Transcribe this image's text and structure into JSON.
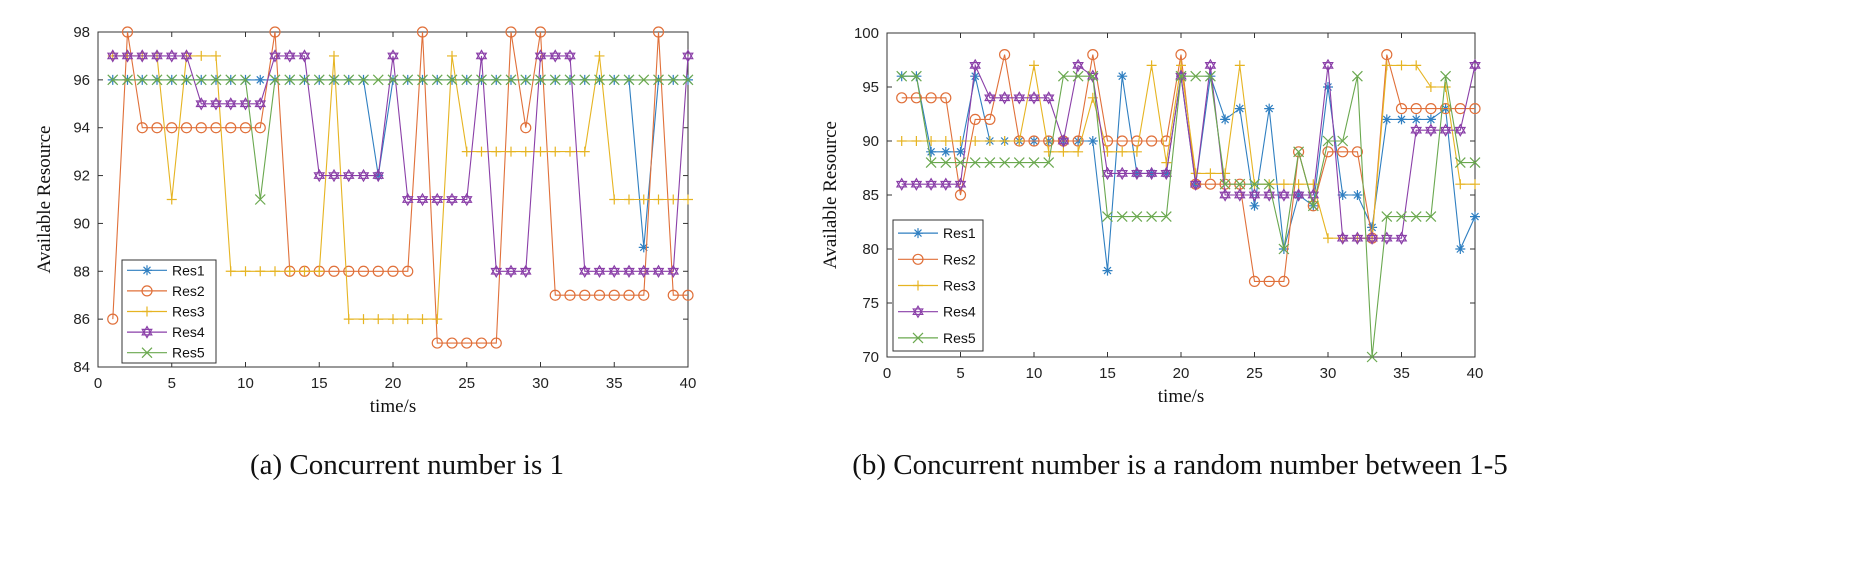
{
  "chart_data": [
    {
      "type": "line",
      "caption": "(a)  Concurrent number is 1",
      "xlabel": "time/s",
      "ylabel": "Available  Resource",
      "xlim": [
        0,
        40
      ],
      "ylim": [
        84,
        98
      ],
      "xticks": [
        0,
        5,
        10,
        15,
        20,
        25,
        30,
        35,
        40
      ],
      "yticks": [
        84,
        86,
        88,
        90,
        92,
        94,
        96,
        98
      ],
      "legend_position": "bottom-left",
      "x": [
        1,
        2,
        3,
        4,
        5,
        6,
        7,
        8,
        9,
        10,
        11,
        12,
        13,
        14,
        15,
        16,
        17,
        18,
        19,
        20,
        21,
        22,
        23,
        24,
        25,
        26,
        27,
        28,
        29,
        30,
        31,
        32,
        33,
        34,
        35,
        36,
        37,
        38,
        39,
        40
      ],
      "series": [
        {
          "name": "Res1",
          "color": "#2f7fc1",
          "marker": "star",
          "values": [
            96,
            96,
            96,
            96,
            96,
            96,
            96,
            96,
            96,
            96,
            96,
            96,
            96,
            96,
            96,
            96,
            96,
            96,
            92,
            96,
            96,
            96,
            96,
            96,
            96,
            96,
            96,
            96,
            96,
            96,
            96,
            96,
            96,
            96,
            96,
            96,
            89,
            96,
            96,
            96
          ]
        },
        {
          "name": "Res2",
          "color": "#e0703a",
          "marker": "circle",
          "values": [
            86,
            98,
            94,
            94,
            94,
            94,
            94,
            94,
            94,
            94,
            94,
            98,
            88,
            88,
            88,
            88,
            88,
            88,
            88,
            88,
            88,
            98,
            85,
            85,
            85,
            85,
            85,
            98,
            94,
            98,
            87,
            87,
            87,
            87,
            87,
            87,
            87,
            98,
            87,
            87
          ]
        },
        {
          "name": "Res3",
          "color": "#e6b422",
          "marker": "plus",
          "values": [
            97,
            97,
            97,
            97,
            91,
            97,
            97,
            97,
            88,
            88,
            88,
            88,
            88,
            88,
            88,
            97,
            86,
            86,
            86,
            86,
            86,
            86,
            86,
            97,
            93,
            93,
            93,
            93,
            93,
            93,
            93,
            93,
            93,
            97,
            91,
            91,
            91,
            91,
            91,
            91
          ]
        },
        {
          "name": "Res4",
          "color": "#8a3fa8",
          "marker": "hexagram",
          "values": [
            97,
            97,
            97,
            97,
            97,
            97,
            95,
            95,
            95,
            95,
            95,
            97,
            97,
            97,
            92,
            92,
            92,
            92,
            92,
            97,
            91,
            91,
            91,
            91,
            91,
            97,
            88,
            88,
            88,
            97,
            97,
            97,
            88,
            88,
            88,
            88,
            88,
            88,
            88,
            97
          ]
        },
        {
          "name": "Res5",
          "color": "#6aa84f",
          "marker": "x",
          "values": [
            96,
            96,
            96,
            96,
            96,
            96,
            96,
            96,
            96,
            96,
            91,
            96,
            96,
            96,
            96,
            96,
            96,
            96,
            96,
            96,
            96,
            96,
            96,
            96,
            96,
            96,
            96,
            96,
            96,
            96,
            96,
            96,
            96,
            96,
            96,
            96,
            96,
            96,
            96,
            96
          ]
        }
      ]
    },
    {
      "type": "line",
      "caption": "(b) Concurrent number is a random number between 1-5",
      "xlabel": "time/s",
      "ylabel": "Available   Resource",
      "xlim": [
        0,
        40
      ],
      "ylim": [
        70,
        100
      ],
      "xticks": [
        0,
        5,
        10,
        15,
        20,
        25,
        30,
        35,
        40
      ],
      "yticks": [
        70,
        75,
        80,
        85,
        90,
        95,
        100
      ],
      "legend_position": "bottom-left",
      "x": [
        1,
        2,
        3,
        4,
        5,
        6,
        7,
        8,
        9,
        10,
        11,
        12,
        13,
        14,
        15,
        16,
        17,
        18,
        19,
        20,
        21,
        22,
        23,
        24,
        25,
        26,
        27,
        28,
        29,
        30,
        31,
        32,
        33,
        34,
        35,
        36,
        37,
        38,
        39,
        40
      ],
      "series": [
        {
          "name": "Res1",
          "color": "#2f7fc1",
          "marker": "star",
          "values": [
            96,
            96,
            89,
            89,
            89,
            96,
            90,
            90,
            90,
            90,
            90,
            90,
            90,
            90,
            78,
            96,
            87,
            87,
            87,
            96,
            86,
            96,
            92,
            93,
            84,
            93,
            80,
            85,
            84,
            95,
            85,
            85,
            82,
            92,
            92,
            92,
            92,
            93,
            80,
            83
          ]
        },
        {
          "name": "Res2",
          "color": "#e0703a",
          "marker": "circle",
          "values": [
            94,
            94,
            94,
            94,
            85,
            92,
            92,
            98,
            90,
            90,
            90,
            90,
            90,
            98,
            90,
            90,
            90,
            90,
            90,
            98,
            86,
            86,
            86,
            86,
            77,
            77,
            77,
            89,
            84,
            89,
            89,
            89,
            81,
            98,
            93,
            93,
            93,
            93,
            93,
            93
          ]
        },
        {
          "name": "Res3",
          "color": "#e6b422",
          "marker": "plus",
          "values": [
            90,
            90,
            90,
            90,
            90,
            90,
            90,
            90,
            90,
            97,
            89,
            89,
            89,
            94,
            89,
            89,
            89,
            97,
            88,
            97,
            87,
            87,
            87,
            97,
            86,
            86,
            86,
            86,
            86,
            81,
            81,
            81,
            81,
            97,
            97,
            97,
            95,
            95,
            86,
            86
          ]
        },
        {
          "name": "Res4",
          "color": "#8a3fa8",
          "marker": "hexagram",
          "values": [
            86,
            86,
            86,
            86,
            86,
            97,
            94,
            94,
            94,
            94,
            94,
            90,
            97,
            96,
            87,
            87,
            87,
            87,
            87,
            96,
            86,
            97,
            85,
            85,
            85,
            85,
            85,
            85,
            85,
            97,
            81,
            81,
            81,
            81,
            81,
            91,
            91,
            91,
            91,
            97
          ]
        },
        {
          "name": "Res5",
          "color": "#6aa84f",
          "marker": "x",
          "values": [
            96,
            96,
            88,
            88,
            88,
            88,
            88,
            88,
            88,
            88,
            88,
            96,
            96,
            96,
            83,
            83,
            83,
            83,
            83,
            96,
            96,
            96,
            86,
            86,
            86,
            86,
            80,
            89,
            84,
            90,
            90,
            96,
            70,
            83,
            83,
            83,
            83,
            96,
            88,
            88
          ]
        }
      ]
    }
  ]
}
